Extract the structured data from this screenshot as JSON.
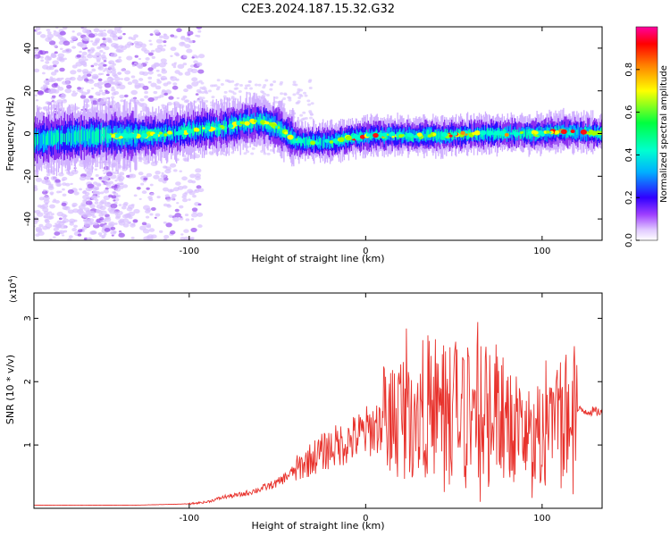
{
  "title": "C2E3.2024.187.15.32.G32",
  "colors": {
    "line": "#e8322c",
    "axis": "#000000",
    "colormap": [
      "#ffffff",
      "#c8a8f0",
      "#7a00e6",
      "#2020ff",
      "#00c8ff",
      "#00ff80",
      "#ffff00",
      "#ff8000",
      "#ff0000",
      "#ff00a0"
    ]
  },
  "chart_data": [
    {
      "type": "heatmap",
      "title": "",
      "xlabel": "Height of straight line (km)",
      "ylabel": "Frequency (Hz)",
      "xlim": [
        -188,
        134
      ],
      "ylim": [
        -50,
        50
      ],
      "xticks": [
        -100,
        0,
        100
      ],
      "yticks": [
        -40,
        -20,
        0,
        20,
        40
      ],
      "grid": false,
      "ridge": {
        "x": [
          -188,
          -170,
          -150,
          -130,
          -110,
          -95,
          -80,
          -62,
          -50,
          -40,
          -30,
          -20,
          -10,
          0,
          20,
          40,
          60,
          80,
          100,
          110,
          134
        ],
        "freq": [
          -3,
          -2,
          -1,
          -1,
          0,
          2,
          3,
          6,
          3,
          -3,
          -4,
          -4,
          -2,
          -1,
          -1,
          -1,
          0,
          0,
          0,
          1,
          0
        ]
      },
      "colorbar": {
        "label": "Normalized spectral amplitude",
        "range": [
          0,
          1
        ],
        "ticks": [
          "0.0",
          "0.2",
          "0.4",
          "0.6",
          "0.8"
        ],
        "tick_values": [
          0,
          0.2,
          0.4,
          0.6,
          0.8
        ]
      }
    },
    {
      "type": "line",
      "title": "",
      "xlabel": "Height of straight line (km)",
      "ylabel": "SNR (10 * v/v)",
      "scale_label": "(x10",
      "scale_exp": "4",
      "scale_close": ")",
      "xlim": [
        -188,
        134
      ],
      "ylim": [
        0,
        3.4
      ],
      "xticks": [
        -100,
        0,
        100
      ],
      "yticks": [
        1,
        2,
        3
      ],
      "grid": false,
      "series": [
        {
          "x": [
            -188,
            -160,
            -130,
            -100,
            -90,
            -80,
            -70,
            -60,
            -50,
            -40,
            -30,
            -20,
            -10,
            0,
            10,
            20,
            30,
            40,
            50,
            60,
            70,
            80,
            90,
            100,
            110,
            120,
            134
          ],
          "y": [
            0.05,
            0.05,
            0.05,
            0.07,
            0.1,
            0.18,
            0.22,
            0.3,
            0.4,
            0.6,
            0.8,
            0.95,
            1.05,
            1.2,
            1.35,
            1.5,
            1.6,
            1.65,
            1.6,
            1.5,
            1.6,
            1.4,
            1.2,
            1.1,
            1.4,
            1.55,
            1.52
          ]
        }
      ]
    }
  ]
}
